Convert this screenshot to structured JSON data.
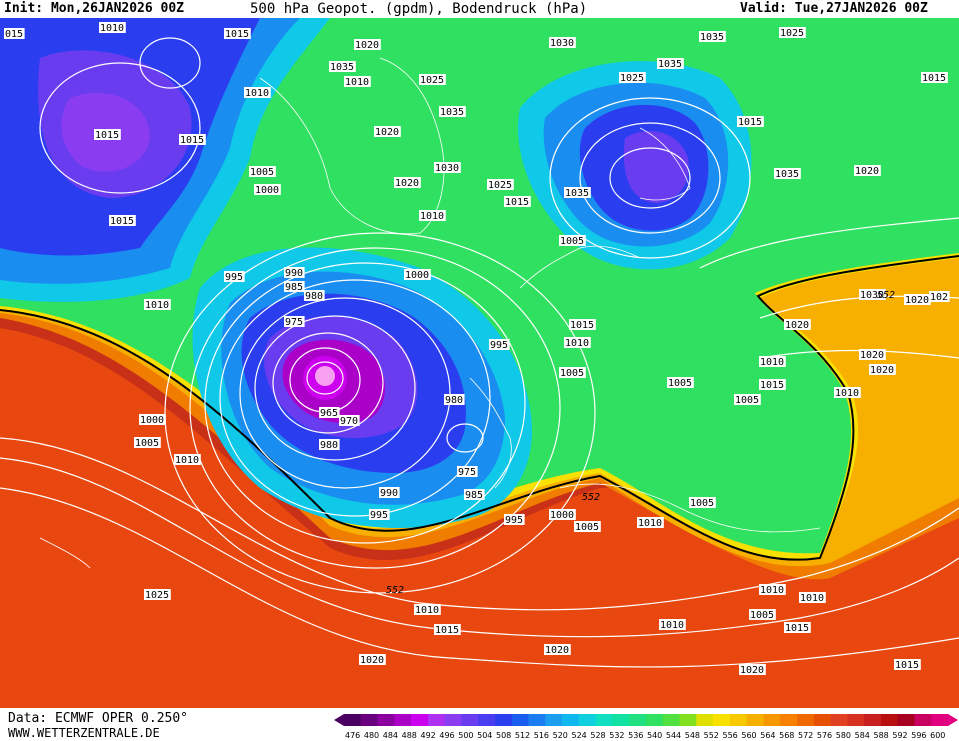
{
  "header": {
    "init": "Init: Mon,26JAN2026 00Z",
    "title": "500 hPa Geopot. (gpdm), Bodendruck (hPa)",
    "valid": "Valid: Tue,27JAN2026 00Z"
  },
  "footer": {
    "source": "Data: ECMWF OPER 0.250°",
    "website": "WWW.WETTERZENTRALE.DE"
  },
  "colors": {
    "scale": [
      "#4a0060",
      "#6a0080",
      "#8a00a0",
      "#aa00c8",
      "#cc00ee",
      "#b030f0",
      "#8a3cf0",
      "#6a3cf0",
      "#4a3cf0",
      "#2a3ef0",
      "#1a5ef0",
      "#1a7ef0",
      "#1a9ef0",
      "#10b8f0",
      "#10d0e0",
      "#10e0c0",
      "#10e0a0",
      "#20e080",
      "#30e060",
      "#50e040",
      "#80e020",
      "#e0e000",
      "#f8e000",
      "#f8c800",
      "#f8b000",
      "#f89800",
      "#f88000",
      "#f06800",
      "#e85000",
      "#e04020",
      "#d83020",
      "#c82020",
      "#b81010",
      "#a80020",
      "#c80060",
      "#e00080"
    ],
    "low_center": "#f8a0f0",
    "isobar": "#ffffff",
    "contour_552": "#000000"
  },
  "legend": {
    "labels": [
      "476",
      "480",
      "484",
      "488",
      "492",
      "496",
      "500",
      "504",
      "508",
      "512",
      "516",
      "520",
      "524",
      "528",
      "532",
      "536",
      "540",
      "544",
      "548",
      "552",
      "556",
      "560",
      "564",
      "568",
      "572",
      "576",
      "580",
      "584",
      "588",
      "592",
      "596",
      "600"
    ]
  },
  "map_labels": {
    "isobars": [
      "015",
      "1010",
      "1015",
      "1020",
      "1035",
      "1030",
      "1035",
      "1025",
      "1010",
      "1010",
      "1015",
      "1025",
      "1015",
      "1020",
      "1025",
      "1035",
      "1005",
      "1030",
      "1035",
      "1000",
      "1020",
      "1035",
      "1020",
      "1015",
      "1010",
      "1025",
      "1015",
      "1035",
      "1015",
      "1015",
      "1005",
      "995",
      "990",
      "985",
      "980",
      "1000",
      "1010",
      "975",
      "1030",
      "1020",
      "995",
      "1015",
      "1010",
      "1005",
      "1005",
      "1010",
      "1015",
      "1020",
      "1010",
      "1005",
      "980",
      "965",
      "970",
      "980",
      "975",
      "1010",
      "1000",
      "1005",
      "1010",
      "985",
      "990",
      "995",
      "995",
      "1000",
      "1005",
      "1010",
      "1005",
      "1025",
      "1010",
      "1015",
      "1005",
      "1010",
      "1020",
      "1010",
      "1015",
      "1020",
      "1020",
      "1015",
      "1020",
      "1020",
      "102"
    ],
    "geopot_552": "552"
  }
}
